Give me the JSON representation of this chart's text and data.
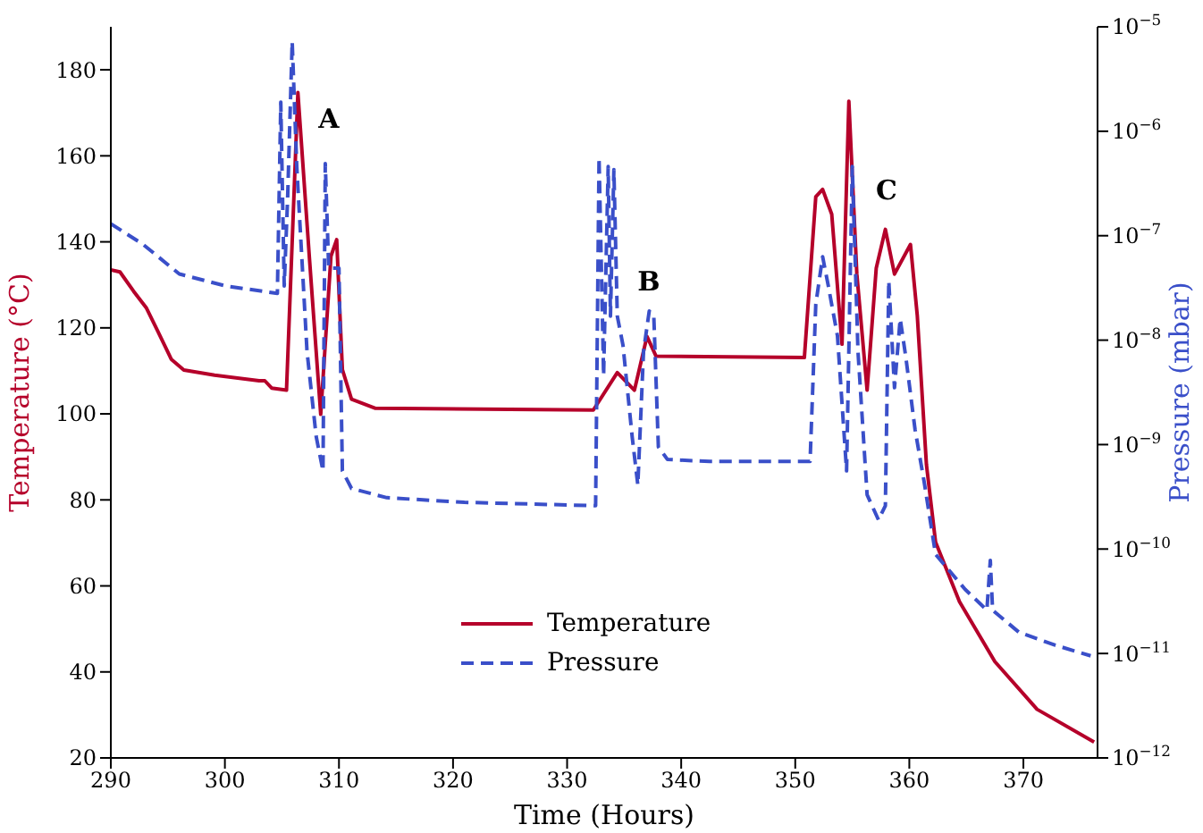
{
  "chart_data": {
    "type": "line",
    "xlabel": "Time (Hours)",
    "ylabel": "Temperature (°C)",
    "y2label": "Pressure (mbar)",
    "xlim": [
      290,
      376.5
    ],
    "xticks": [
      290,
      300,
      310,
      320,
      330,
      340,
      350,
      360,
      370
    ],
    "ylim": [
      20,
      190
    ],
    "yticks": [
      20,
      40,
      60,
      80,
      100,
      120,
      140,
      160,
      180
    ],
    "y2lim": [
      1e-12,
      1e-05
    ],
    "y2ticks": [
      {
        "value": 1e-12,
        "label": "10$^{−12}$"
      },
      {
        "value": 1e-11,
        "label": "10$^{−11}$"
      },
      {
        "value": 1e-10,
        "label": "10$^{−10}$"
      },
      {
        "value": 1e-09,
        "label": "10$^{−9}$"
      },
      {
        "value": 1e-08,
        "label": "10$^{−8}$"
      },
      {
        "value": 1e-07,
        "label": "10$^{−7}$"
      },
      {
        "value": 1e-06,
        "label": "10$^{−6}$"
      },
      {
        "value": 1e-05,
        "label": "10$^{−5}$"
      }
    ],
    "log": "y2",
    "grid": false,
    "legend": "bottom",
    "marker": "none",
    "series": [
      {
        "name": "Temperature",
        "color": "#b5002a",
        "line_style": "solid",
        "x": [
          290,
          290.8,
          292,
          293.1,
          294.1,
          295.3,
          296.4,
          299.1,
          303,
          303.5,
          304.1,
          305.4,
          306.4,
          307.4,
          308.4,
          309.3,
          309.8,
          310.3,
          311.1,
          313.2,
          332.3,
          334.4,
          335.9,
          337,
          337.8,
          350.8,
          351.8,
          352.4,
          353.2,
          354.1,
          354.7,
          355.4,
          356.3,
          357.1,
          357.9,
          358.7,
          360.1,
          360.7,
          361.5,
          362.3,
          364.4,
          367.5,
          371.2,
          376.2
        ],
        "values": [
          133.5,
          133,
          128.5,
          124.7,
          119.3,
          112.7,
          110.2,
          109,
          107.7,
          107.7,
          106,
          105.5,
          174.7,
          136.6,
          99.9,
          136.7,
          140.5,
          110.3,
          103.4,
          101.3,
          100.9,
          109.6,
          105.5,
          118,
          113.4,
          113.1,
          150.5,
          152.2,
          146.4,
          116.2,
          172.7,
          132.5,
          105.5,
          133.9,
          142.9,
          132.5,
          139.4,
          122.8,
          88.2,
          70.2,
          56.3,
          42.4,
          31.3,
          23.7
        ]
      },
      {
        "name": "Pressure",
        "color": "#3a4fc9",
        "line_style": "dashed",
        "axis": "y2",
        "x": [
          290,
          292.8,
          296,
          300.1,
          304.6,
          304.9,
          305.2,
          305.5,
          305.9,
          306.3,
          307.2,
          308,
          308.6,
          308.8,
          309.1,
          310,
          310.3,
          311.1,
          314.2,
          321,
          332.5,
          332.8,
          333.2,
          333.6,
          333.8,
          334.1,
          334.4,
          334.9,
          335.7,
          336.2,
          336.7,
          337.2,
          337.6,
          338,
          338.8,
          342.5,
          351.3,
          351.8,
          352.4,
          352.9,
          353.7,
          354.5,
          355,
          355.5,
          356.3,
          357.3,
          357.9,
          358.2,
          358.7,
          359.2,
          359.7,
          360.5,
          361.3,
          362.3,
          364.9,
          366.8,
          367.1,
          367.3,
          369.6,
          372.8,
          375.9
        ],
        "values": [
          1.3e-07,
          8.3e-08,
          4.3e-08,
          3.3e-08,
          2.8e-08,
          1.9e-06,
          3.3e-08,
          2.3e-07,
          7.2e-06,
          4.6e-07,
          7.8e-09,
          1.2e-09,
          5.6e-10,
          4.9e-07,
          4.9e-08,
          4.9e-08,
          5.6e-10,
          3.8e-10,
          3.1e-10,
          2.8e-10,
          2.6e-10,
          5.6e-07,
          4.6e-09,
          4.6e-07,
          1.7e-08,
          4.3e-07,
          1.7e-08,
          8.9e-09,
          1.2e-09,
          4.1e-10,
          7.8e-09,
          1.9e-08,
          1.7e-08,
          9.5e-10,
          7.2e-10,
          6.9e-10,
          6.9e-10,
          2.2e-08,
          6.3e-08,
          3.3e-08,
          1.1e-08,
          5.6e-10,
          4.6e-07,
          7.8e-09,
          3.3e-10,
          1.9e-10,
          2.6e-10,
          3.7e-08,
          3.5e-09,
          1.6e-08,
          6.8e-09,
          1.4e-09,
          4.4e-10,
          8.9e-11,
          4.1e-11,
          2.6e-11,
          7.8e-11,
          2.6e-11,
          1.6e-11,
          1.2e-11,
          9.5e-12
        ]
      }
    ],
    "annotations": [
      "A",
      "B",
      "C"
    ]
  }
}
